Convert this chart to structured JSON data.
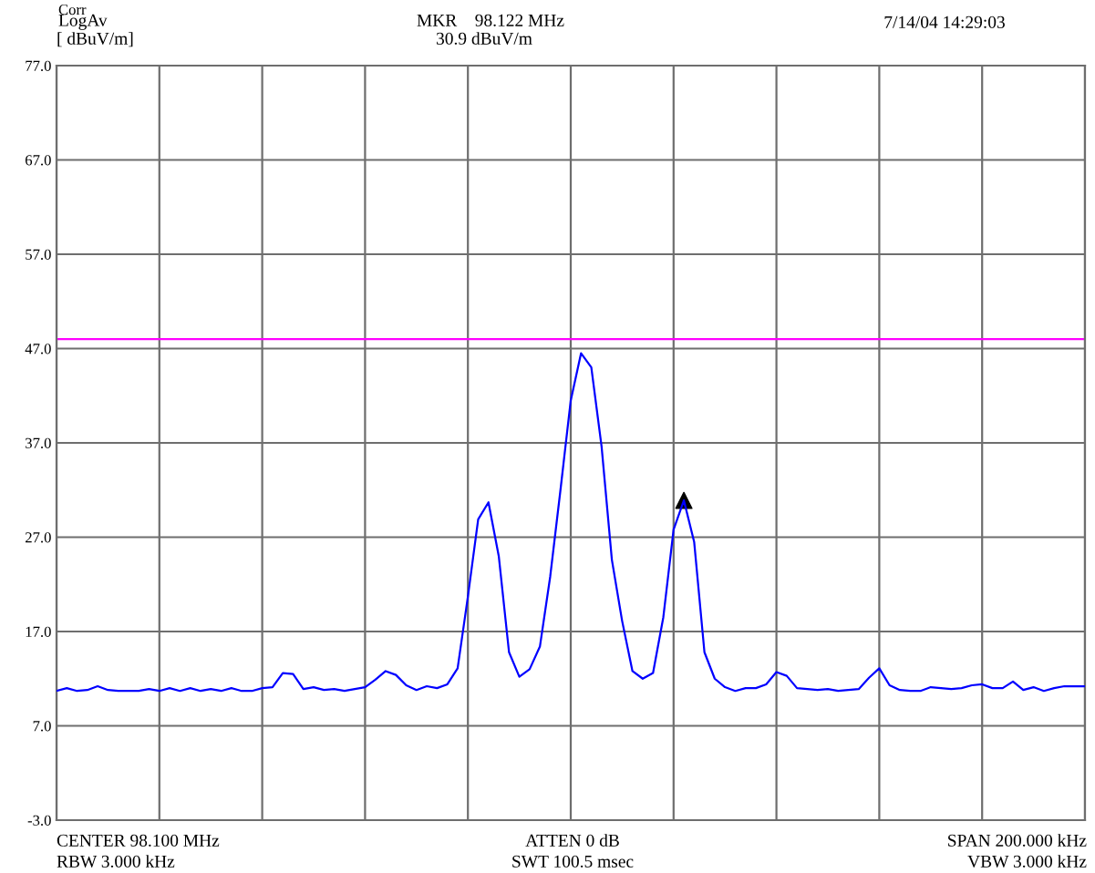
{
  "chart_data": {
    "type": "line",
    "categories": [
      null,
      null,
      null,
      null,
      null,
      null,
      null,
      null,
      null,
      null,
      null,
      null,
      null,
      null,
      null,
      null,
      null,
      null,
      null,
      null,
      null,
      null,
      null,
      null,
      null,
      null,
      null,
      null,
      null,
      null,
      null,
      null,
      null,
      null,
      null,
      null,
      null,
      null,
      null,
      null,
      null,
      null,
      null,
      null,
      null,
      null,
      null,
      null,
      null,
      null,
      null,
      null,
      null,
      null,
      null,
      null,
      null,
      null,
      null,
      null,
      null,
      null,
      null,
      null,
      null,
      null,
      null,
      null,
      null,
      null,
      null,
      null,
      null,
      null,
      null,
      null,
      null,
      null,
      null,
      null,
      null,
      null,
      null,
      null,
      null,
      null,
      null,
      null,
      null,
      null,
      null,
      null,
      null,
      null,
      null,
      null,
      null,
      null,
      null,
      null,
      null
    ],
    "series": [
      {
        "color": "#0000ff",
        "values": [
          10.7,
          11.0,
          10.7,
          10.8,
          11.2,
          10.8,
          10.7,
          10.7,
          10.7,
          10.9,
          10.7,
          11.0,
          10.7,
          11.0,
          10.7,
          10.9,
          10.7,
          11.0,
          10.7,
          10.7,
          11.0,
          11.1,
          12.6,
          12.5,
          10.9,
          11.1,
          10.8,
          10.9,
          10.7,
          10.9,
          11.1,
          11.9,
          12.8,
          12.4,
          11.3,
          10.8,
          11.2,
          11.0,
          11.4,
          13.1,
          20.7,
          28.9,
          30.7,
          25.0,
          14.8,
          12.2,
          13.0,
          15.4,
          22.8,
          32.0,
          41.5,
          46.5,
          45.0,
          36.6,
          24.6,
          18.1,
          12.8,
          12.0,
          12.6,
          18.5,
          27.8,
          30.9,
          26.5,
          14.8,
          12.0,
          11.1,
          10.7,
          11.0,
          11.0,
          11.4,
          12.7,
          12.3,
          11.0,
          10.9,
          10.8,
          10.9,
          10.7,
          10.8,
          10.9,
          12.1,
          13.1,
          11.3,
          10.8,
          10.7,
          10.7,
          11.1,
          11.0,
          10.9,
          11.0,
          11.3,
          11.4,
          11.0,
          11.0,
          11.7,
          10.8,
          11.1,
          10.7,
          11.0,
          11.2,
          11.2,
          11.2
        ]
      },
      {
        "type": "scatter",
        "color": "#000000",
        "marker": "triangle",
        "values": [
          null,
          null,
          null,
          null,
          null,
          null,
          null,
          null,
          null,
          null,
          null,
          null,
          null,
          null,
          null,
          null,
          null,
          null,
          null,
          null,
          null,
          null,
          null,
          null,
          null,
          null,
          null,
          null,
          null,
          null,
          null,
          null,
          null,
          null,
          null,
          null,
          null,
          null,
          null,
          null,
          null,
          null,
          null,
          null,
          null,
          null,
          null,
          null,
          null,
          null,
          null,
          null,
          null,
          null,
          null,
          null,
          null,
          null,
          null,
          null,
          null,
          30.9,
          null,
          null,
          null,
          null,
          null,
          null,
          null,
          null,
          null,
          null,
          null,
          null,
          null,
          null,
          null,
          null,
          null,
          null,
          null,
          null,
          null,
          null,
          null,
          null,
          null,
          null,
          null,
          null,
          null,
          null,
          null,
          null,
          null,
          null,
          null,
          null,
          null,
          null,
          null
        ]
      }
    ],
    "ylim": [
      -3,
      77
    ],
    "yticks": [
      {
        "value": -3,
        "label": "-3.0"
      },
      {
        "value": 7,
        "label": "7.0"
      },
      {
        "value": 17,
        "label": "17.0"
      },
      {
        "value": 27,
        "label": "27.0"
      },
      {
        "value": 37,
        "label": "37.0"
      },
      {
        "value": 47,
        "label": "47.0"
      },
      {
        "value": 57,
        "label": "57.0"
      },
      {
        "value": 67,
        "label": "67.0"
      },
      {
        "value": 77,
        "label": "77.0"
      }
    ],
    "grid": true,
    "ref_lines": [
      {
        "axis": "y",
        "value": 48.0,
        "color": "#ff00ff"
      }
    ],
    "annotations": [
      "Corr",
      "LogAv",
      "[ dBuV/m]",
      "MKR    98.122 MHz",
      "30.9 dBuV/m",
      "7/14/04 14:29:03",
      "CENTER 98.100 MHz",
      "ATTEN 0 dB",
      "SPAN 200.000 kHz",
      "RBW 3.000 kHz",
      "SWT 100.5 msec",
      "VBW 3.000 kHz"
    ]
  }
}
